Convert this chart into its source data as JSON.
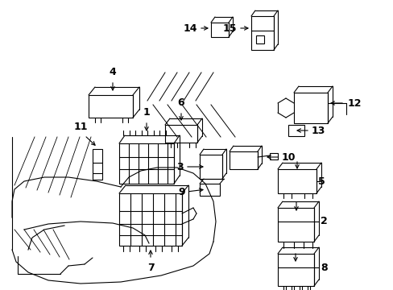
{
  "bg_color": "#ffffff",
  "line_color": "#000000",
  "label_color": "#000000",
  "fig_width": 4.89,
  "fig_height": 3.6,
  "dpi": 100
}
